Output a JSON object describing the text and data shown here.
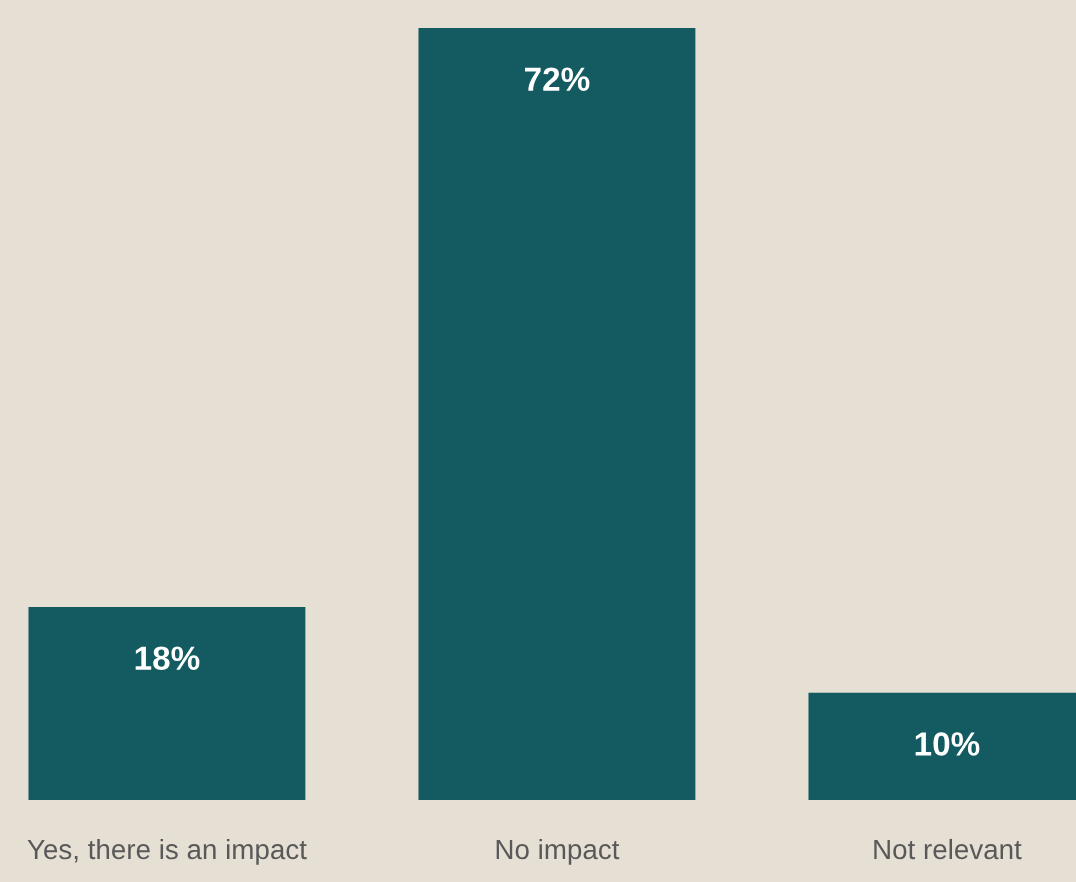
{
  "chart_data": {
    "type": "bar",
    "categories": [
      "Yes, there is an impact",
      "No impact",
      "Not relevant"
    ],
    "values": [
      18,
      72,
      10
    ],
    "value_labels": [
      "18%",
      "72%",
      "10%"
    ],
    "color": "#135a61",
    "grid": false,
    "legend": false
  }
}
